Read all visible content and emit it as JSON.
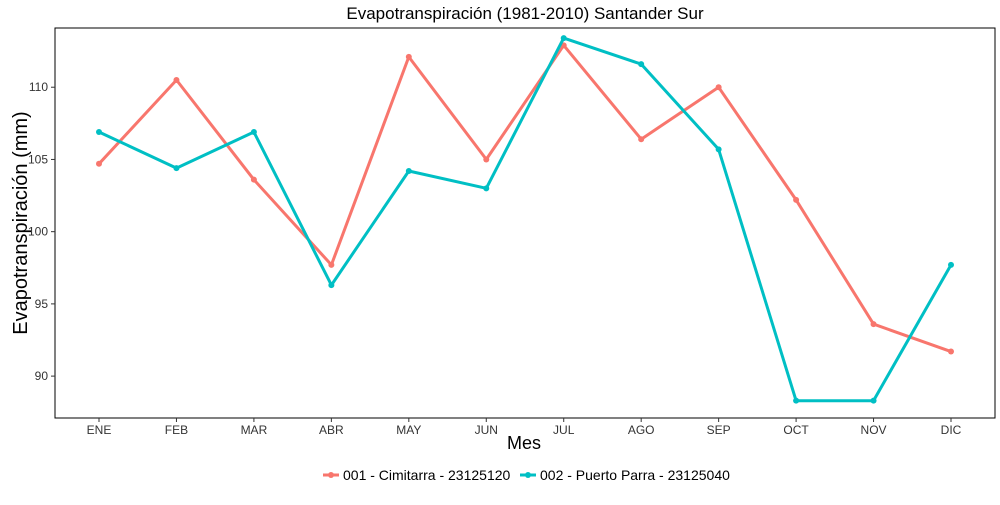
{
  "chart_data": {
    "type": "line",
    "title": "Evapotranspiración (1981-2010)  Santander Sur",
    "xlabel": "Mes",
    "ylabel": "Evapotranspiración  (mm)",
    "categories": [
      "ENE",
      "FEB",
      "MAR",
      "ABR",
      "MAY",
      "JUN",
      "JUL",
      "AGO",
      "SEP",
      "OCT",
      "NOV",
      "DIC"
    ],
    "yticks": [
      90,
      95,
      100,
      105,
      110
    ],
    "ylim": [
      87.1,
      114.1
    ],
    "grid": false,
    "legend_position": "bottom",
    "series": [
      {
        "name": "001 - Cimitarra - 23125120",
        "color": "#F8766D",
        "values": [
          104.7,
          110.5,
          103.6,
          97.7,
          112.1,
          105.0,
          112.9,
          106.4,
          110.0,
          102.2,
          93.6,
          91.7
        ]
      },
      {
        "name": "002 - Puerto Parra - 23125040",
        "color": "#00BFC4",
        "values": [
          106.9,
          104.4,
          106.9,
          96.3,
          104.2,
          103.0,
          113.4,
          111.6,
          105.7,
          88.3,
          88.3,
          97.7
        ]
      }
    ]
  }
}
